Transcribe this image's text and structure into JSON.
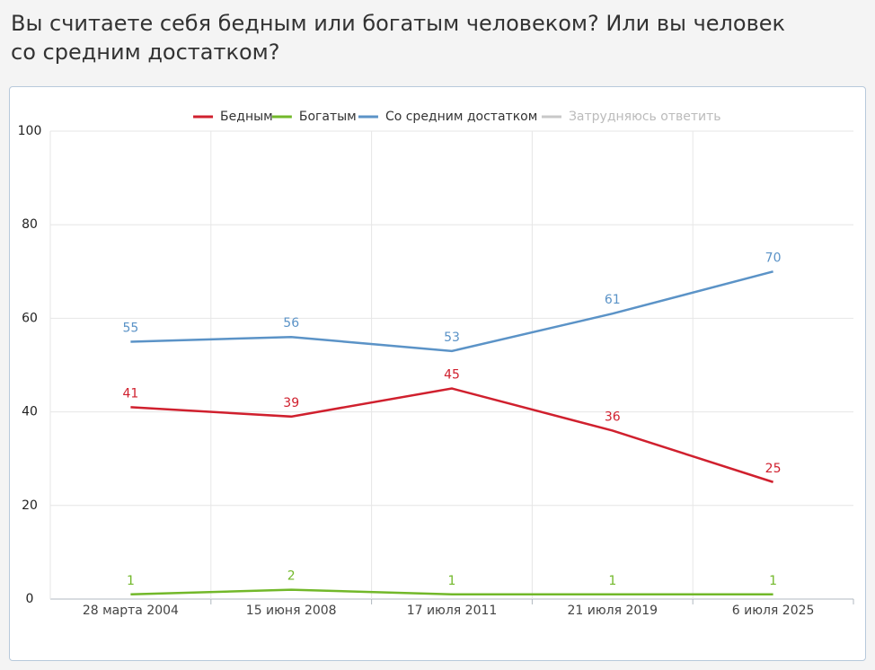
{
  "chart_data": {
    "type": "line",
    "title": "Вы считаете себя бедным или богатым человеком? Или вы человек со средним достатком?",
    "categories": [
      "28 марта 2004",
      "15 июня 2008",
      "17 июля 2011",
      "21 июля 2019",
      "6 июля 2025"
    ],
    "series": [
      {
        "name": "Бедным",
        "color": "#d0202e",
        "values": [
          41,
          39,
          45,
          36,
          25
        ]
      },
      {
        "name": "Богатым",
        "color": "#72b82a",
        "values": [
          1,
          2,
          1,
          1,
          1
        ]
      },
      {
        "name": "Со средним достатком",
        "color": "#5b93c7",
        "values": [
          55,
          56,
          53,
          61,
          70
        ]
      },
      {
        "name": "Затрудняюсь ответить",
        "color": "#c8c8c8",
        "visible": false
      }
    ],
    "ylim": [
      0,
      100
    ],
    "yticks": [
      0,
      20,
      40,
      60,
      80,
      100
    ],
    "grid": true,
    "legend": "top"
  }
}
